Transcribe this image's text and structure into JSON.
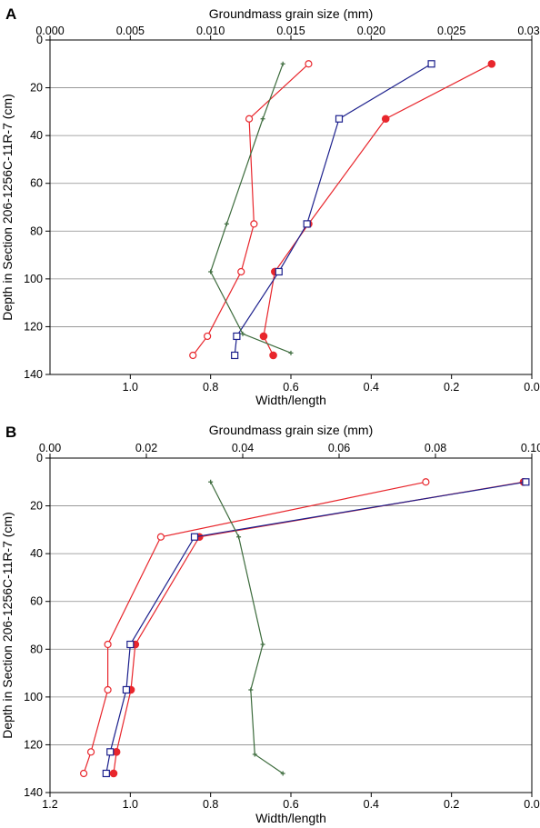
{
  "chart_data": [
    {
      "type": "line",
      "panel_label": "A",
      "top_axis": {
        "label": "Groundmass grain size (mm)",
        "lim": [
          0.0,
          0.03
        ],
        "ticks": [
          0.0,
          0.005,
          0.01,
          0.015,
          0.02,
          0.025,
          0.03
        ],
        "tick_labels": [
          "0.000",
          "0.005",
          "0.010",
          "0.015",
          "0.020",
          "0.025",
          "0.030"
        ]
      },
      "bottom_axis": {
        "label": "Width/length",
        "lim": [
          1.2,
          0.0
        ],
        "ticks": [
          1.0,
          0.8,
          0.6,
          0.4,
          0.2,
          0.0
        ],
        "tick_labels": [
          "1.0",
          "0.8",
          "0.6",
          "0.4",
          "0.2",
          "0.0"
        ]
      },
      "y_axis": {
        "label": "Depth in Section 206-1256C-11R-7 (cm)",
        "lim": [
          0,
          140
        ],
        "ticks": [
          0,
          20,
          40,
          60,
          80,
          100,
          120,
          140
        ],
        "tick_labels": [
          "0",
          "20",
          "40",
          "60",
          "80",
          "100",
          "120",
          "140"
        ]
      },
      "grid": "horizontal",
      "series": [
        {
          "marker": "open-circle",
          "color": "#e8262c",
          "axis": "top",
          "points": [
            [
              0.0161,
              10
            ],
            [
              0.0124,
              33
            ],
            [
              0.0127,
              77
            ],
            [
              0.0119,
              97
            ],
            [
              0.0098,
              124
            ],
            [
              0.0089,
              132
            ]
          ]
        },
        {
          "marker": "filled-circle",
          "color": "#e8262c",
          "axis": "top",
          "points": [
            [
              0.0275,
              10
            ],
            [
              0.0209,
              33
            ],
            [
              0.0161,
              77
            ],
            [
              0.014,
              97
            ],
            [
              0.0133,
              124
            ],
            [
              0.0139,
              132
            ]
          ]
        },
        {
          "marker": "open-square",
          "color": "#1b1f8c",
          "axis": "bottom",
          "points": [
            [
              0.25,
              10
            ],
            [
              0.48,
              33
            ],
            [
              0.56,
              77
            ],
            [
              0.63,
              97
            ],
            [
              0.735,
              124
            ],
            [
              0.74,
              132
            ]
          ]
        },
        {
          "marker": "cross",
          "color": "#3c6b3c",
          "axis": "bottom",
          "points": [
            [
              0.62,
              10
            ],
            [
              0.67,
              33
            ],
            [
              0.76,
              77
            ],
            [
              0.8,
              97
            ],
            [
              0.72,
              123
            ],
            [
              0.6,
              131
            ]
          ]
        }
      ]
    },
    {
      "type": "line",
      "panel_label": "B",
      "top_axis": {
        "label": "Groundmass grain size (mm)",
        "lim": [
          0.0,
          0.1
        ],
        "ticks": [
          0.0,
          0.02,
          0.04,
          0.06,
          0.08,
          0.1
        ],
        "tick_labels": [
          "0.00",
          "0.02",
          "0.04",
          "0.06",
          "0.08",
          "0.10"
        ]
      },
      "bottom_axis": {
        "label": "Width/length",
        "lim": [
          1.2,
          0.0
        ],
        "ticks": [
          1.2,
          1.0,
          0.8,
          0.6,
          0.4,
          0.2,
          0.0
        ],
        "tick_labels": [
          "1.2",
          "1.0",
          "0.8",
          "0.6",
          "0.4",
          "0.2",
          "0.0"
        ]
      },
      "y_axis": {
        "label": "Depth in Section 206-1256C-11R-7 (cm)",
        "lim": [
          0,
          140
        ],
        "ticks": [
          0,
          20,
          40,
          60,
          80,
          100,
          120,
          140
        ],
        "tick_labels": [
          "0",
          "20",
          "40",
          "60",
          "80",
          "100",
          "120",
          "140"
        ]
      },
      "grid": "horizontal",
      "series": [
        {
          "marker": "open-circle",
          "color": "#e8262c",
          "axis": "top",
          "points": [
            [
              0.078,
              10
            ],
            [
              0.023,
              33
            ],
            [
              0.012,
              78
            ],
            [
              0.012,
              97
            ],
            [
              0.0085,
              123
            ],
            [
              0.007,
              132
            ]
          ]
        },
        {
          "marker": "filled-circle",
          "color": "#e8262c",
          "axis": "top",
          "points": [
            [
              0.0983,
              10
            ],
            [
              0.031,
              33
            ],
            [
              0.0177,
              78
            ],
            [
              0.0168,
              97
            ],
            [
              0.0138,
              123
            ],
            [
              0.0132,
              132
            ]
          ]
        },
        {
          "marker": "open-square",
          "color": "#1b1f8c",
          "axis": "bottom",
          "points": [
            [
              0.015,
              10
            ],
            [
              0.84,
              33
            ],
            [
              1.0,
              78
            ],
            [
              1.01,
              97
            ],
            [
              1.05,
              123
            ],
            [
              1.06,
              132
            ]
          ]
        },
        {
          "marker": "cross",
          "color": "#3c6b3c",
          "axis": "bottom",
          "points": [
            [
              0.8,
              10
            ],
            [
              0.73,
              33
            ],
            [
              0.67,
              78
            ],
            [
              0.7,
              97
            ],
            [
              0.69,
              124
            ],
            [
              0.62,
              132
            ]
          ]
        }
      ]
    }
  ]
}
